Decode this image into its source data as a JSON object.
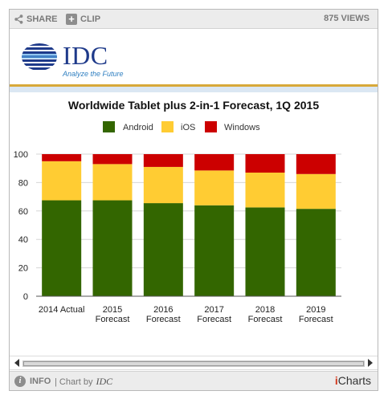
{
  "toolbar": {
    "share_label": "SHARE",
    "clip_label": "CLIP",
    "views_label": "875 VIEWS"
  },
  "brand": {
    "logo_text": "IDC",
    "tagline": "Analyze the Future"
  },
  "footer": {
    "info_label": "INFO",
    "chart_by": "| Chart by",
    "chart_by_source": "IDC",
    "brand_i": "i",
    "brand_rest": "Charts"
  },
  "colors": {
    "android": "#336600",
    "ios": "#ffcc33",
    "windows": "#cc0000"
  },
  "chart_data": {
    "type": "bar",
    "stacked": true,
    "title": "Worldwide Tablet plus 2-in-1 Forecast, 1Q 2015",
    "xlabel": "",
    "ylabel": "",
    "ylim": [
      0,
      100
    ],
    "yticks": [
      0,
      20,
      40,
      60,
      80,
      100
    ],
    "grid": true,
    "legend_position": "top",
    "categories": [
      [
        "2014 Actual"
      ],
      [
        "2015",
        "Forecast"
      ],
      [
        "2016",
        "Forecast"
      ],
      [
        "2017",
        "Forecast"
      ],
      [
        "2018",
        "Forecast"
      ],
      [
        "2019",
        "Forecast"
      ]
    ],
    "series": [
      {
        "name": "Android",
        "color": "#336600",
        "values": [
          67.5,
          67.5,
          65.5,
          64,
          62.5,
          61.5
        ]
      },
      {
        "name": "iOS",
        "color": "#ffcc33",
        "values": [
          27.5,
          25.5,
          25.5,
          24.5,
          24.5,
          24.5
        ]
      },
      {
        "name": "Windows",
        "color": "#cc0000",
        "values": [
          5,
          7,
          9,
          11.5,
          13,
          14
        ]
      }
    ]
  }
}
